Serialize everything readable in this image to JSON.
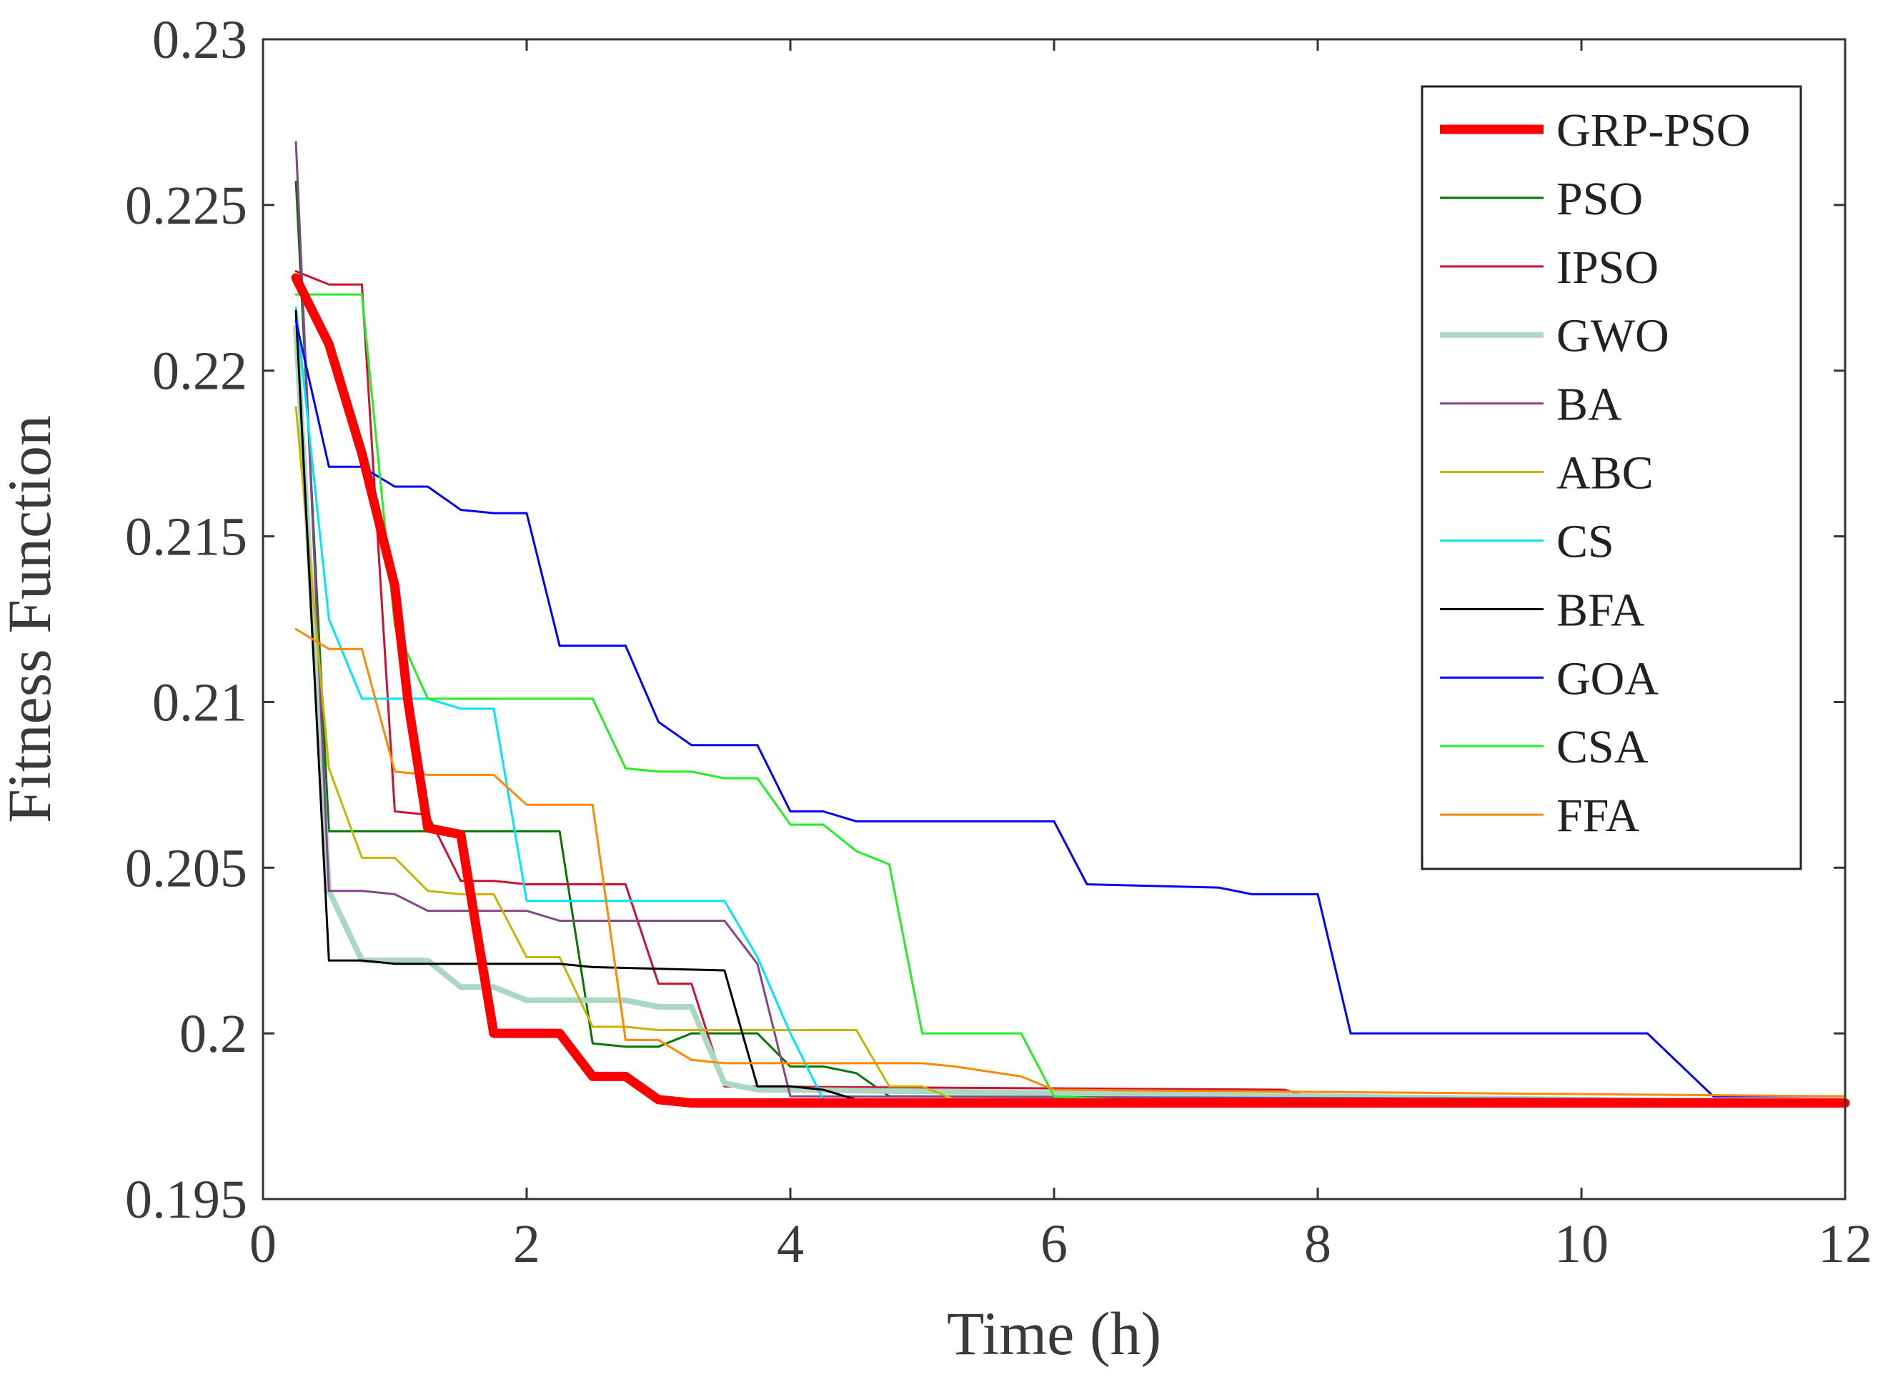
{
  "chart_data": {
    "type": "line",
    "title": "",
    "xlabel": "Time (h)",
    "ylabel": "Fitness Function",
    "xlim": [
      0,
      12
    ],
    "ylim": [
      0.195,
      0.23
    ],
    "xticks": [
      "0",
      "2",
      "4",
      "6",
      "8",
      "10",
      "12"
    ],
    "yticks": [
      "0.195",
      "0.2",
      "0.205",
      "0.21",
      "0.215",
      "0.22",
      "0.225",
      "0.23"
    ],
    "grid": false,
    "legend_position": "top-right",
    "series": [
      {
        "name": "GRP-PSO",
        "color": "#ff0000",
        "width": 13,
        "points": [
          [
            0.25,
            0.2228
          ],
          [
            0.5,
            0.2208
          ],
          [
            0.75,
            0.2175
          ],
          [
            1.0,
            0.2135
          ],
          [
            1.1,
            0.21
          ],
          [
            1.25,
            0.2062
          ],
          [
            1.5,
            0.206
          ],
          [
            1.75,
            0.2
          ],
          [
            2.0,
            0.2
          ],
          [
            2.25,
            0.2
          ],
          [
            2.5,
            0.1987
          ],
          [
            2.75,
            0.1987
          ],
          [
            3.0,
            0.198
          ],
          [
            3.25,
            0.1979
          ],
          [
            12,
            0.1979
          ]
        ]
      },
      {
        "name": "PSO",
        "color": "#007700",
        "width": 3,
        "points": [
          [
            0.25,
            0.2257
          ],
          [
            0.5,
            0.2061
          ],
          [
            0.75,
            0.2061
          ],
          [
            1.0,
            0.2061
          ],
          [
            2.25,
            0.2061
          ],
          [
            2.5,
            0.1997
          ],
          [
            2.75,
            0.1996
          ],
          [
            3.0,
            0.1996
          ],
          [
            3.25,
            0.2
          ],
          [
            3.75,
            0.2
          ],
          [
            4.0,
            0.199
          ],
          [
            4.25,
            0.199
          ],
          [
            4.5,
            0.1988
          ],
          [
            4.75,
            0.1981
          ],
          [
            12,
            0.198
          ]
        ]
      },
      {
        "name": "IPSO",
        "color": "#cc1133",
        "width": 3,
        "points": [
          [
            0.25,
            0.223
          ],
          [
            0.5,
            0.2226
          ],
          [
            0.75,
            0.2226
          ],
          [
            1.0,
            0.2067
          ],
          [
            1.25,
            0.2066
          ],
          [
            1.5,
            0.2046
          ],
          [
            1.75,
            0.2046
          ],
          [
            2.0,
            0.2045
          ],
          [
            2.75,
            0.2045
          ],
          [
            3.0,
            0.2015
          ],
          [
            3.25,
            0.2015
          ],
          [
            3.5,
            0.1984
          ],
          [
            7.75,
            0.1983
          ],
          [
            8.0,
            0.198
          ],
          [
            12,
            0.198
          ]
        ]
      },
      {
        "name": "GWO",
        "color": "#aad8c2",
        "width": 8,
        "points": [
          [
            0.25,
            0.2213
          ],
          [
            0.5,
            0.2043
          ],
          [
            0.75,
            0.2022
          ],
          [
            1.0,
            0.2022
          ],
          [
            1.25,
            0.2022
          ],
          [
            1.5,
            0.2014
          ],
          [
            1.75,
            0.2014
          ],
          [
            2.0,
            0.201
          ],
          [
            2.25,
            0.201
          ],
          [
            2.5,
            0.201
          ],
          [
            2.75,
            0.201
          ],
          [
            3.0,
            0.2008
          ],
          [
            3.25,
            0.2008
          ],
          [
            3.5,
            0.1985
          ],
          [
            3.75,
            0.1983
          ],
          [
            4.0,
            0.1983
          ],
          [
            12,
            0.1979
          ]
        ]
      },
      {
        "name": "BA",
        "color": "#884488",
        "width": 3,
        "points": [
          [
            0.25,
            0.2269
          ],
          [
            0.5,
            0.2043
          ],
          [
            0.75,
            0.2043
          ],
          [
            1.0,
            0.2042
          ],
          [
            1.25,
            0.2037
          ],
          [
            1.5,
            0.2037
          ],
          [
            1.75,
            0.2037
          ],
          [
            2.0,
            0.2037
          ],
          [
            2.25,
            0.2034
          ],
          [
            2.5,
            0.2034
          ],
          [
            3.5,
            0.2034
          ],
          [
            3.75,
            0.2021
          ],
          [
            4.0,
            0.1981
          ],
          [
            12,
            0.198
          ]
        ]
      },
      {
        "name": "ABC",
        "color": "#c8b400",
        "width": 3,
        "points": [
          [
            0.25,
            0.2189
          ],
          [
            0.5,
            0.208
          ],
          [
            0.75,
            0.2053
          ],
          [
            1.0,
            0.2053
          ],
          [
            1.25,
            0.2043
          ],
          [
            1.5,
            0.2042
          ],
          [
            1.75,
            0.2042
          ],
          [
            2.0,
            0.2023
          ],
          [
            2.25,
            0.2023
          ],
          [
            2.5,
            0.2002
          ],
          [
            2.75,
            0.2002
          ],
          [
            3.0,
            0.2001
          ],
          [
            3.25,
            0.2001
          ],
          [
            4.5,
            0.2001
          ],
          [
            4.75,
            0.1984
          ],
          [
            5.0,
            0.1984
          ],
          [
            5.25,
            0.198
          ],
          [
            12,
            0.198
          ]
        ]
      },
      {
        "name": "CS",
        "color": "#00e5ff",
        "width": 3,
        "points": [
          [
            0.25,
            0.2219
          ],
          [
            0.5,
            0.2125
          ],
          [
            0.75,
            0.2101
          ],
          [
            1.0,
            0.2101
          ],
          [
            1.25,
            0.2101
          ],
          [
            1.5,
            0.2098
          ],
          [
            1.75,
            0.2098
          ],
          [
            2.0,
            0.204
          ],
          [
            2.25,
            0.204
          ],
          [
            3.5,
            0.204
          ],
          [
            3.75,
            0.2023
          ],
          [
            4.0,
            0.2
          ],
          [
            4.25,
            0.198
          ],
          [
            12,
            0.198
          ]
        ]
      },
      {
        "name": "BFA",
        "color": "#000000",
        "width": 3,
        "points": [
          [
            0.25,
            0.2218
          ],
          [
            0.5,
            0.2022
          ],
          [
            0.75,
            0.2022
          ],
          [
            1.0,
            0.2021
          ],
          [
            2.25,
            0.2021
          ],
          [
            2.5,
            0.202
          ],
          [
            3.5,
            0.2019
          ],
          [
            3.75,
            0.1984
          ],
          [
            4.0,
            0.1984
          ],
          [
            4.25,
            0.1983
          ],
          [
            4.5,
            0.198
          ],
          [
            12,
            0.198
          ]
        ]
      },
      {
        "name": "GOA",
        "color": "#0000ff",
        "width": 3,
        "points": [
          [
            0.25,
            0.2215
          ],
          [
            0.5,
            0.2171
          ],
          [
            0.75,
            0.2171
          ],
          [
            1.0,
            0.2165
          ],
          [
            1.25,
            0.2165
          ],
          [
            1.5,
            0.2158
          ],
          [
            1.75,
            0.2157
          ],
          [
            2.0,
            0.2157
          ],
          [
            2.25,
            0.2117
          ],
          [
            2.5,
            0.2117
          ],
          [
            2.75,
            0.2117
          ],
          [
            3.0,
            0.2094
          ],
          [
            3.25,
            0.2087
          ],
          [
            3.5,
            0.2087
          ],
          [
            3.75,
            0.2087
          ],
          [
            4.0,
            0.2067
          ],
          [
            4.25,
            0.2067
          ],
          [
            4.5,
            0.2064
          ],
          [
            5.0,
            0.2064
          ],
          [
            5.75,
            0.2064
          ],
          [
            6.0,
            0.2064
          ],
          [
            6.25,
            0.2045
          ],
          [
            7.25,
            0.2044
          ],
          [
            7.5,
            0.2042
          ],
          [
            8.0,
            0.2042
          ],
          [
            8.25,
            0.2
          ],
          [
            10.5,
            0.2
          ],
          [
            11.0,
            0.1981
          ],
          [
            12,
            0.1981
          ]
        ]
      },
      {
        "name": "CSA",
        "color": "#22ee22",
        "width": 3,
        "points": [
          [
            0.25,
            0.2223
          ],
          [
            0.5,
            0.2223
          ],
          [
            0.75,
            0.2223
          ],
          [
            1.0,
            0.2123
          ],
          [
            1.25,
            0.2101
          ],
          [
            1.5,
            0.2101
          ],
          [
            2.25,
            0.2101
          ],
          [
            2.5,
            0.2101
          ],
          [
            2.75,
            0.208
          ],
          [
            3.0,
            0.2079
          ],
          [
            3.25,
            0.2079
          ],
          [
            3.5,
            0.2077
          ],
          [
            3.75,
            0.2077
          ],
          [
            4.0,
            0.2063
          ],
          [
            4.25,
            0.2063
          ],
          [
            4.5,
            0.2055
          ],
          [
            4.75,
            0.2051
          ],
          [
            5.0,
            0.2
          ],
          [
            5.25,
            0.2
          ],
          [
            5.75,
            0.2
          ],
          [
            6.0,
            0.1981
          ],
          [
            6.5,
            0.198
          ],
          [
            12,
            0.198
          ]
        ]
      },
      {
        "name": "FFA",
        "color": "#ff8800",
        "width": 3,
        "points": [
          [
            0.25,
            0.2122
          ],
          [
            0.5,
            0.2116
          ],
          [
            0.75,
            0.2116
          ],
          [
            1.0,
            0.2079
          ],
          [
            1.25,
            0.2078
          ],
          [
            1.5,
            0.2078
          ],
          [
            1.75,
            0.2078
          ],
          [
            2.0,
            0.2069
          ],
          [
            2.25,
            0.2069
          ],
          [
            2.5,
            0.2069
          ],
          [
            2.75,
            0.1998
          ],
          [
            3.0,
            0.1998
          ],
          [
            3.25,
            0.1992
          ],
          [
            3.5,
            0.1991
          ],
          [
            3.75,
            0.1991
          ],
          [
            4.75,
            0.1991
          ],
          [
            5.0,
            0.1991
          ],
          [
            5.25,
            0.199
          ],
          [
            5.75,
            0.1987
          ],
          [
            6.0,
            0.1983
          ],
          [
            12,
            0.1981
          ]
        ]
      }
    ]
  }
}
